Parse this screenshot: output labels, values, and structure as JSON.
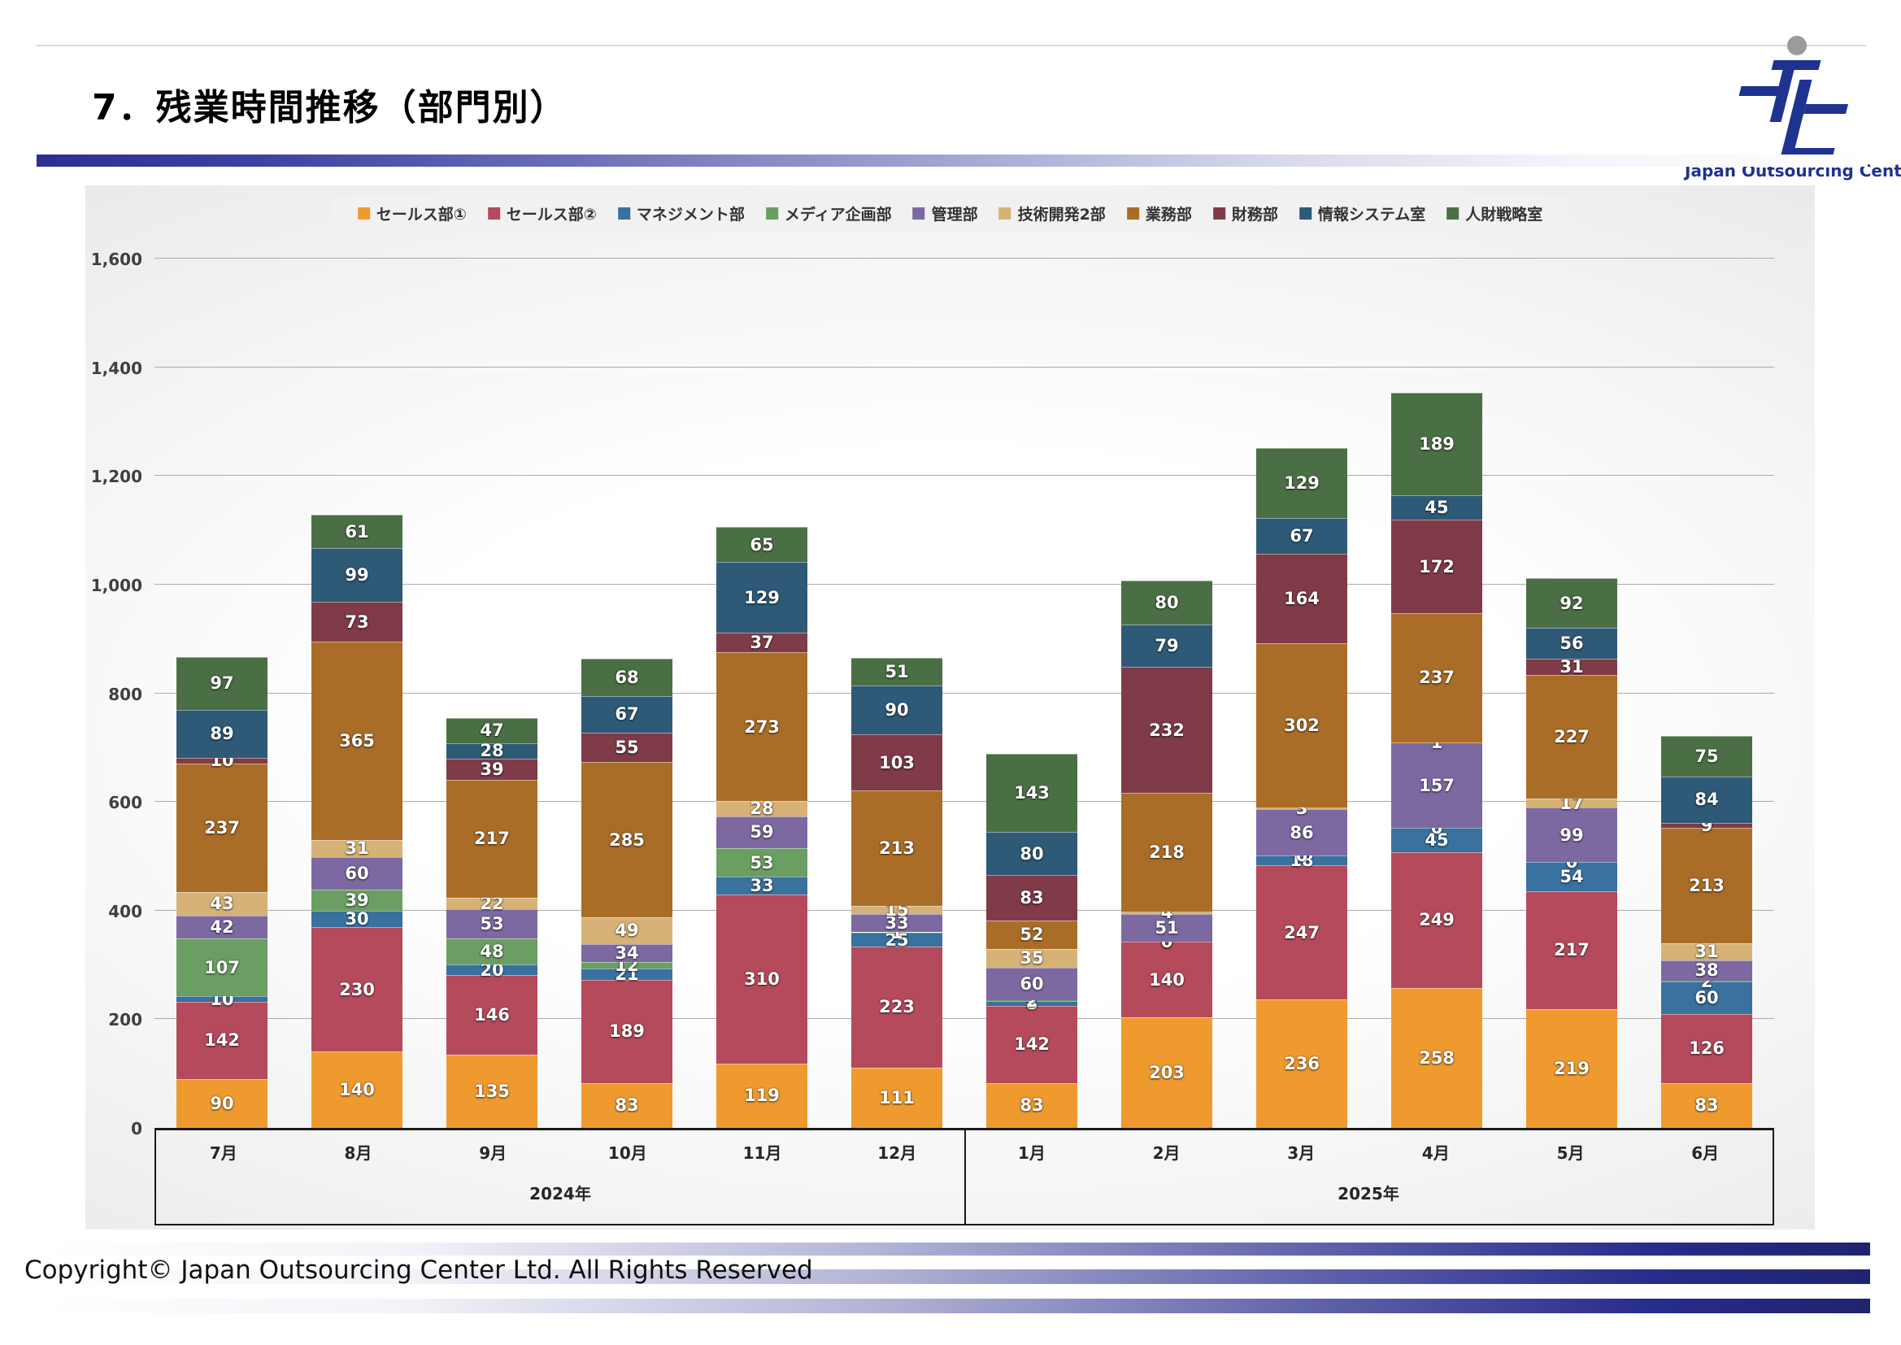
{
  "page": {
    "title": "7．残業時間推移（部門別）",
    "copyright": "Copyright© Japan Outsourcing Center Ltd. All Rights Reserved"
  },
  "logo": {
    "text": "Japan Outsourcing Center"
  },
  "chart_data": {
    "type": "bar",
    "stacked": true,
    "title": "残業時間推移（部門別）",
    "categories": [
      "7月",
      "8月",
      "9月",
      "10月",
      "11月",
      "12月",
      "1月",
      "2月",
      "3月",
      "4月",
      "5月",
      "6月"
    ],
    "year_groups": [
      {
        "label": "2024年",
        "span": 6
      },
      {
        "label": "2025年",
        "span": 6
      }
    ],
    "y_axis": {
      "min": 0,
      "max": 1600,
      "step": 200,
      "tick_labels": [
        "0",
        "200",
        "400",
        "600",
        "800",
        "1,000",
        "1,200",
        "1,400",
        "1,600"
      ]
    },
    "grid": true,
    "legend_position": "top",
    "series": [
      {
        "name": "セールス部①",
        "color": "#ee9a2f",
        "values": [
          90,
          140,
          135,
          83,
          119,
          111,
          83,
          203,
          236,
          258,
          219,
          83
        ]
      },
      {
        "name": "セールス部②",
        "color": "#b44a5c",
        "values": [
          142,
          230,
          146,
          189,
          310,
          223,
          142,
          140,
          247,
          249,
          217,
          126
        ]
      },
      {
        "name": "マネジメント部",
        "color": "#39719f",
        "values": [
          10,
          30,
          20,
          21,
          33,
          25,
          8,
          0,
          18,
          45,
          54,
          60
        ]
      },
      {
        "name": "メディア企画部",
        "color": "#6b9e62",
        "values": [
          107,
          39,
          48,
          12,
          53,
          1,
          2,
          0,
          0,
          0,
          0,
          2
        ]
      },
      {
        "name": "管理部",
        "color": "#7c69a2",
        "values": [
          42,
          60,
          53,
          34,
          59,
          33,
          60,
          51,
          86,
          157,
          99,
          38
        ]
      },
      {
        "name": "技術開発2部",
        "color": "#d6b277",
        "values": [
          43,
          31,
          22,
          49,
          28,
          15,
          35,
          4,
          3,
          1,
          17,
          31
        ]
      },
      {
        "name": "業務部",
        "color": "#aa6d28",
        "values": [
          237,
          365,
          217,
          285,
          273,
          213,
          52,
          218,
          302,
          237,
          227,
          213
        ]
      },
      {
        "name": "財務部",
        "color": "#7f3b48",
        "values": [
          10,
          73,
          39,
          55,
          37,
          103,
          83,
          232,
          164,
          172,
          31,
          9
        ]
      },
      {
        "name": "情報システム室",
        "color": "#2e5a77",
        "values": [
          89,
          99,
          28,
          67,
          129,
          90,
          80,
          79,
          67,
          45,
          56,
          84
        ]
      },
      {
        "name": "人財戦略室",
        "color": "#4b6f44",
        "values": [
          97,
          61,
          47,
          68,
          65,
          51,
          143,
          80,
          129,
          189,
          92,
          75
        ]
      }
    ],
    "totals": [
      867,
      1128,
      755,
      863,
      1106,
      865,
      688,
      1007,
      1252,
      1353,
      1012,
      721
    ]
  }
}
